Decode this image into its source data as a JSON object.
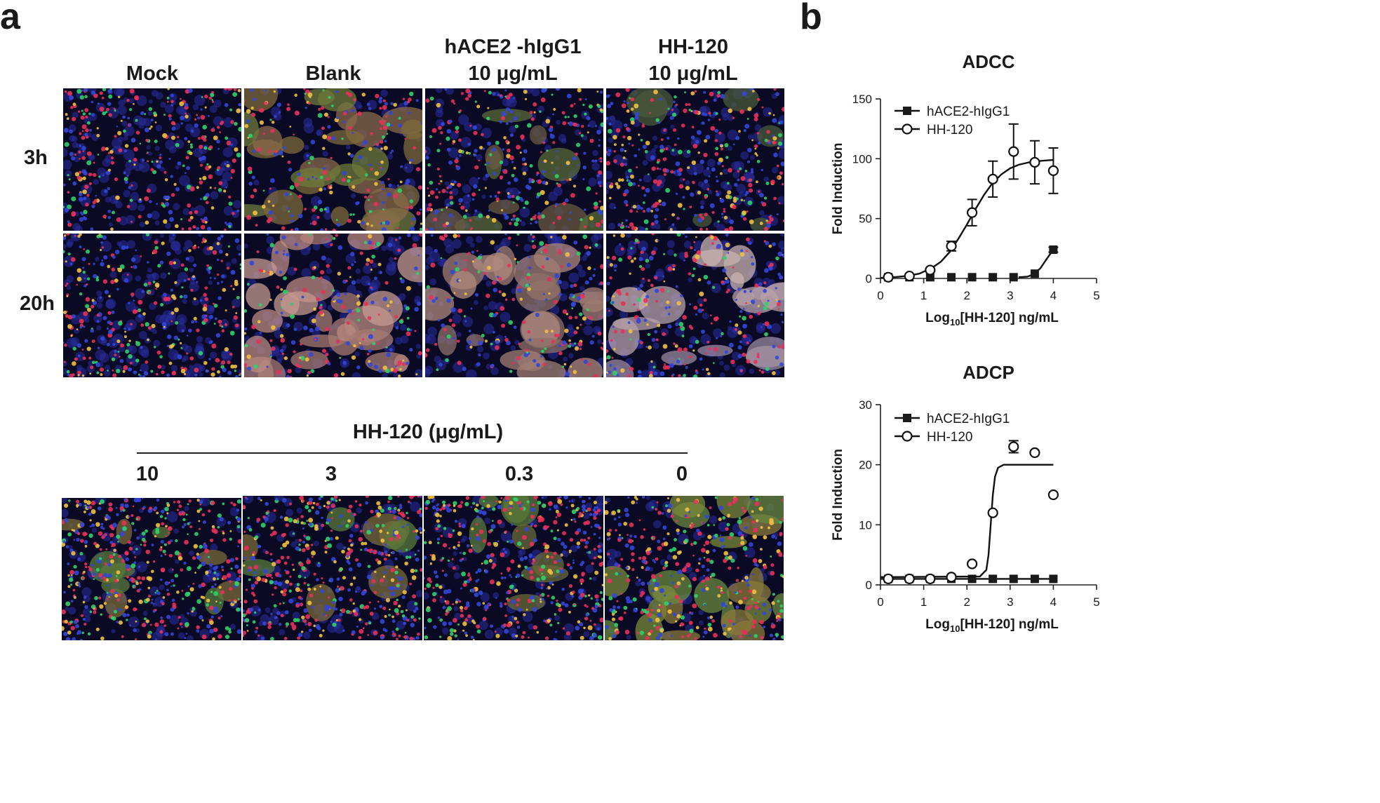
{
  "panel_a": {
    "letter": "a",
    "columns": [
      {
        "line1": "Mock",
        "line2": ""
      },
      {
        "line1": "Blank",
        "line2": ""
      },
      {
        "line1": "hACE2 -hIgG1",
        "line2": "10 μg/mL"
      },
      {
        "line1": "HH-120",
        "line2": "10 μg/mL"
      }
    ],
    "rows": [
      "3h",
      "20h"
    ],
    "dose_title": "HH-120 (μg/mL)",
    "doses": [
      "10",
      "3",
      "0.3",
      "0"
    ]
  },
  "panel_b": {
    "letter": "b",
    "chart_data": [
      {
        "type": "scatter",
        "title": "ADCC",
        "xlabel_prefix": "Log",
        "xlabel_sub": "10",
        "xlabel_suffix": "[HH-120] ng/mL",
        "ylabel": "Fold Induction",
        "xlim": [
          0,
          5
        ],
        "ylim": [
          0,
          150
        ],
        "xticks": [
          "0",
          "1",
          "2",
          "3",
          "4",
          "5"
        ],
        "yticks": [
          "0",
          "50",
          "100",
          "150"
        ],
        "legend_position": "top-left",
        "series": [
          {
            "name": "hACE2-hIgG1",
            "marker": "filled-square",
            "x": [
              0.18,
              0.67,
              1.15,
              1.64,
              2.12,
              2.6,
              3.08,
              3.57,
              4.0
            ],
            "y": [
              1,
              1,
              1,
              1,
              1,
              1,
              1,
              4,
              24
            ],
            "err": [
              0,
              0,
              0,
              0,
              0,
              0,
              0,
              0,
              2
            ],
            "fit_x": [
              3.2,
              3.4,
              3.55,
              3.7,
              3.85,
              4.0
            ],
            "fit_y": [
              1,
              1.5,
              3.5,
              8.5,
              16.5,
              24
            ]
          },
          {
            "name": "HH-120",
            "marker": "open-circle",
            "x": [
              0.18,
              0.67,
              1.15,
              1.64,
              2.12,
              2.6,
              3.08,
              3.57,
              4.0
            ],
            "y": [
              1,
              2,
              7,
              27,
              55,
              83,
              106,
              97,
              90
            ],
            "err": [
              0,
              0,
              1,
              4,
              11,
              15,
              23,
              18,
              19
            ],
            "fit_x": [
              0,
              0.3,
              0.6,
              0.9,
              1.2,
              1.4,
              1.6,
              1.8,
              2.0,
              2.2,
              2.4,
              2.6,
              2.8,
              3.0,
              3.2,
              3.5,
              3.8,
              4.0
            ],
            "fit_y": [
              0.5,
              1,
              2,
              4,
              9,
              14,
              22,
              33,
              45,
              58,
              70,
              80,
              87,
              92,
              95,
              97.5,
              98.5,
              99
            ]
          }
        ]
      },
      {
        "type": "scatter",
        "title": "ADCP",
        "xlabel_prefix": "Log",
        "xlabel_sub": "10",
        "xlabel_suffix": "[HH-120] ng/mL",
        "ylabel": "Fold Induction",
        "xlim": [
          0,
          5
        ],
        "ylim": [
          0,
          30
        ],
        "xticks": [
          "0",
          "1",
          "2",
          "3",
          "4",
          "5"
        ],
        "yticks": [
          "0",
          "10",
          "20",
          "30"
        ],
        "legend_position": "top-left",
        "series": [
          {
            "name": "hACE2-hIgG1",
            "marker": "filled-square",
            "x": [
              0.18,
              0.67,
              1.15,
              1.64,
              2.12,
              2.6,
              3.08,
              3.57,
              4.0
            ],
            "y": [
              1,
              1,
              1,
              1,
              1,
              1,
              1,
              1,
              1
            ],
            "err": [
              0,
              0,
              0,
              0,
              0,
              0,
              0,
              0,
              0
            ],
            "fit_x": [
              0,
              4.0
            ],
            "fit_y": [
              1,
              1
            ]
          },
          {
            "name": "HH-120",
            "marker": "open-circle",
            "x": [
              0.18,
              0.67,
              1.15,
              1.64,
              2.12,
              2.6,
              3.08,
              3.57,
              4.0
            ],
            "y": [
              1,
              1,
              1,
              1.3,
              3.5,
              12,
              23,
              22,
              15
            ],
            "err": [
              0,
              0,
              0,
              0,
              0,
              0,
              1,
              0,
              0
            ],
            "fit_x": [
              0,
              2.3,
              2.45,
              2.5,
              2.55,
              2.6,
              2.65,
              2.72,
              2.85,
              3.1,
              4.0
            ],
            "fit_y": [
              1.3,
              1.4,
              2.5,
              5,
              10,
              15,
              18,
              19.5,
              20,
              20,
              20
            ]
          }
        ]
      }
    ]
  }
}
